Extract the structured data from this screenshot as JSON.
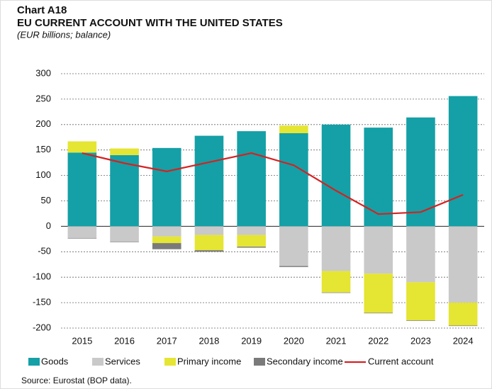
{
  "chart_data": {
    "type": "bar",
    "stacked": true,
    "label": "Chart A18",
    "title": "EU CURRENT ACCOUNT WITH THE UNITED STATES",
    "subtitle": "(EUR billions; balance)",
    "source": "Source: Eurostat (BOP data).",
    "categories": [
      "2015",
      "2016",
      "2017",
      "2018",
      "2019",
      "2020",
      "2021",
      "2022",
      "2023",
      "2024"
    ],
    "series": [
      {
        "name": "Goods",
        "color": "#14a0a6",
        "values": [
          145,
          140,
          154,
          178,
          187,
          183,
          200,
          194,
          214,
          256
        ]
      },
      {
        "name": "Services",
        "color": "#c9c9c9",
        "values": [
          -23,
          -30,
          -20,
          -17,
          -17,
          -78,
          -88,
          -93,
          -110,
          -150
        ]
      },
      {
        "name": "Primary income",
        "color": "#e5e533",
        "values": [
          22,
          13,
          -13,
          -30,
          -23,
          15,
          -42,
          -77,
          -75,
          -45
        ]
      },
      {
        "name": "Secondary income",
        "color": "#7a7a7a",
        "values": [
          -1,
          -1,
          -12,
          -3,
          -2,
          -2,
          -1,
          -1,
          -1,
          -1
        ]
      },
      {
        "name": "Current account",
        "color": "#d42222",
        "type": "line",
        "values": [
          144,
          124,
          108,
          126,
          144,
          120,
          70,
          24,
          28,
          62
        ]
      }
    ],
    "ylim": [
      -200,
      300
    ],
    "yticks": [
      -200,
      -150,
      -100,
      -50,
      0,
      50,
      100,
      150,
      200,
      250,
      300
    ],
    "grid": true,
    "legend": "bottom"
  }
}
